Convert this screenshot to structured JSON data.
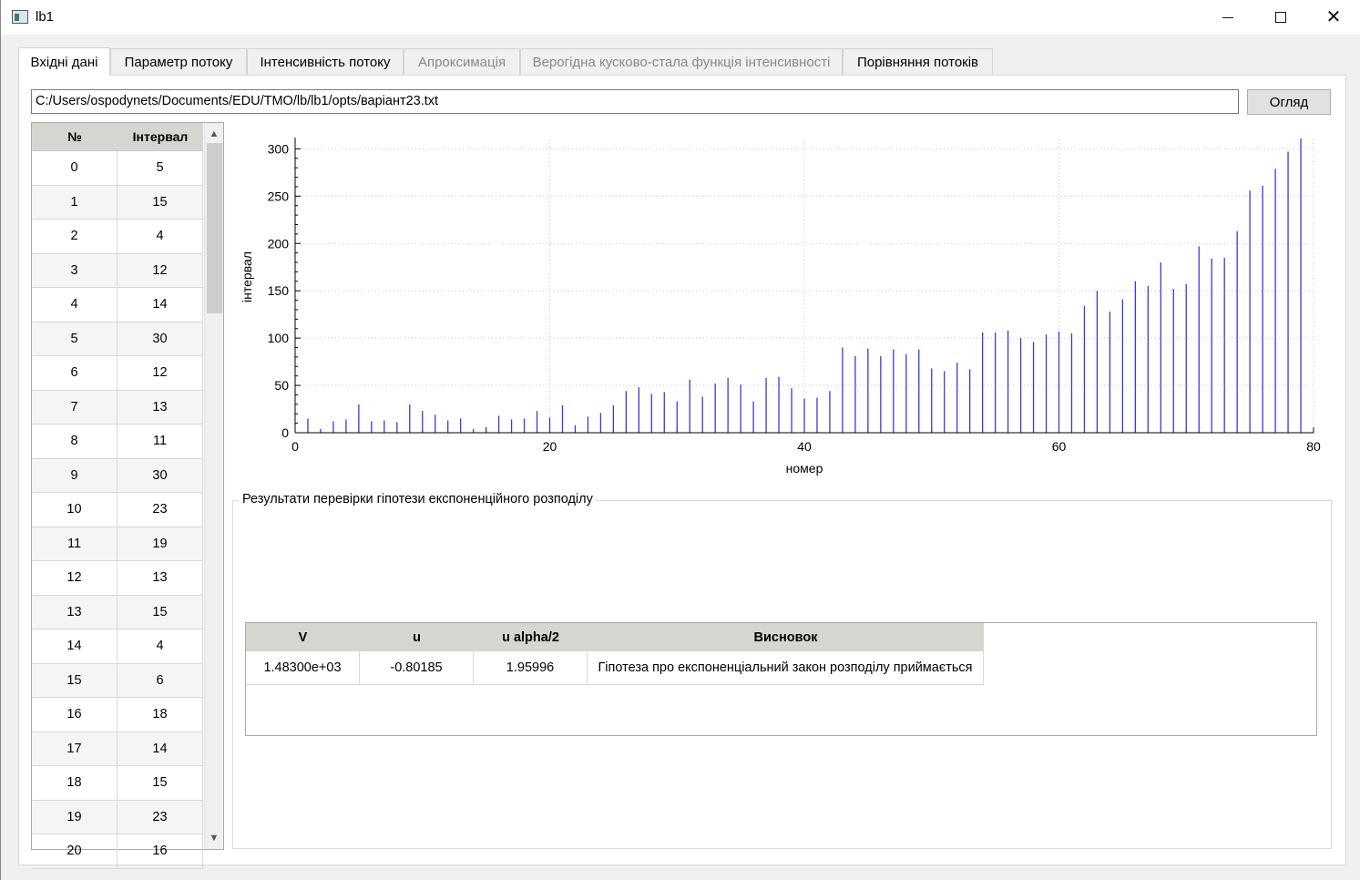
{
  "window": {
    "title": "lb1",
    "minimize_symbol": "",
    "maximize_symbol": "",
    "close_symbol": "✕"
  },
  "tabs": [
    {
      "label": "Вхідні дані",
      "state": "active"
    },
    {
      "label": "Параметр потоку",
      "state": "normal"
    },
    {
      "label": "Інтенсивність потоку",
      "state": "normal"
    },
    {
      "label": "Апроксимація",
      "state": "disabled"
    },
    {
      "label": "Верогідна кусково-стала функція інтенсивності",
      "state": "disabled"
    },
    {
      "label": "Порівняння потоків",
      "state": "normal"
    }
  ],
  "file": {
    "path": "C:/Users/ospodynets/Documents/EDU/TMO/lb/lb1/opts/варіант23.txt",
    "browse_label": "Огляд"
  },
  "data_table": {
    "headers": [
      "№",
      "Інтервал"
    ],
    "rows": [
      [
        "0",
        "5"
      ],
      [
        "1",
        "15"
      ],
      [
        "2",
        "4"
      ],
      [
        "3",
        "12"
      ],
      [
        "4",
        "14"
      ],
      [
        "5",
        "30"
      ],
      [
        "6",
        "12"
      ],
      [
        "7",
        "13"
      ],
      [
        "8",
        "11"
      ],
      [
        "9",
        "30"
      ],
      [
        "10",
        "23"
      ],
      [
        "11",
        "19"
      ],
      [
        "12",
        "13"
      ],
      [
        "13",
        "15"
      ],
      [
        "14",
        "4"
      ],
      [
        "15",
        "6"
      ],
      [
        "16",
        "18"
      ],
      [
        "17",
        "14"
      ],
      [
        "18",
        "15"
      ],
      [
        "19",
        "23"
      ],
      [
        "20",
        "16"
      ]
    ]
  },
  "chart_data": {
    "type": "bar",
    "title": "",
    "xlabel": "номер",
    "ylabel": "інтервал",
    "xlim": [
      0,
      80
    ],
    "ylim": [
      0,
      310
    ],
    "x_ticks": [
      "0",
      "20",
      "40",
      "60",
      "80"
    ],
    "y_ticks": [
      "0",
      "50",
      "100",
      "150",
      "200",
      "250",
      "300"
    ],
    "grid": true,
    "color": "#3a3ad6",
    "x": [
      1,
      2,
      3,
      4,
      5,
      6,
      7,
      8,
      9,
      10,
      11,
      12,
      13,
      14,
      15,
      16,
      17,
      18,
      19,
      20,
      21,
      22,
      23,
      24,
      25,
      26,
      27,
      28,
      29,
      30,
      31,
      32,
      33,
      34,
      35,
      36,
      37,
      38,
      39,
      40,
      41,
      42,
      43,
      44,
      45,
      46,
      47,
      48,
      49,
      50,
      51,
      52,
      53,
      54,
      55,
      56,
      57,
      58,
      59,
      60,
      61,
      62,
      63,
      64,
      65,
      66,
      67,
      68,
      69,
      70,
      71,
      72,
      73,
      74,
      75,
      76,
      77,
      78,
      79
    ],
    "values": [
      15,
      4,
      12,
      14,
      30,
      12,
      13,
      11,
      30,
      23,
      19,
      13,
      15,
      4,
      6,
      18,
      14,
      15,
      23,
      16,
      29,
      8,
      17,
      21,
      29,
      44,
      48,
      41,
      43,
      33,
      56,
      38,
      52,
      58,
      51,
      33,
      58,
      59,
      47,
      36,
      37,
      44,
      90,
      81,
      89,
      81,
      88,
      83,
      88,
      68,
      65,
      74,
      67,
      106,
      106,
      108,
      100,
      96,
      104,
      107,
      105,
      134,
      150,
      128,
      141,
      160,
      155,
      180,
      152,
      157,
      197,
      184,
      185,
      213,
      256,
      261,
      279,
      297,
      311
    ]
  },
  "results": {
    "group_title": "Результати перевірки гіпотези експоненційного розподілу",
    "headers": [
      "V",
      "u",
      "u alpha/2",
      "Висновок"
    ],
    "row": [
      "1.48300e+03",
      "-0.80185",
      "1.95996",
      "Гіпотеза про експоненціальний закон розподілу приймається"
    ]
  }
}
